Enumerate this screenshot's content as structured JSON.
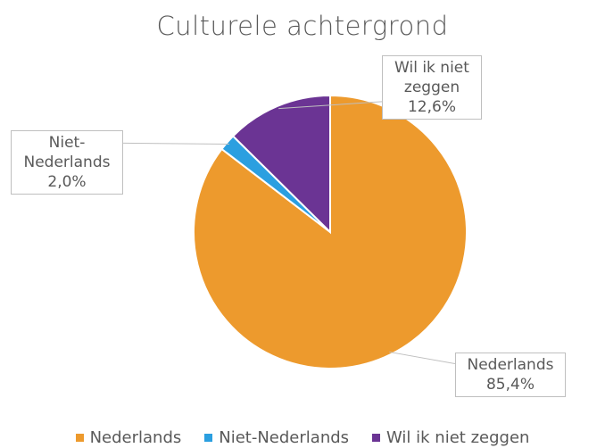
{
  "chart_data": {
    "type": "pie",
    "title": "Culturele achtergrond",
    "categories": [
      "Nederlands",
      "Niet-Nederlands",
      "Wil ik niet zeggen"
    ],
    "values": [
      85.4,
      2.0,
      12.6
    ],
    "value_labels": [
      "85,4%",
      "2,0%",
      "12,6%"
    ],
    "label_lines": {
      "Nederlands": [
        "Nederlands"
      ],
      "Niet-Nederlands": [
        "Niet-",
        "Nederlands"
      ],
      "Wil ik niet zeggen": [
        "Wil ik niet",
        "zeggen"
      ]
    },
    "colors": [
      "#ED9A2D",
      "#2B9FE0",
      "#6B3494"
    ],
    "legend_position": "bottom",
    "start_angle_deg": 0,
    "direction": "clockwise"
  }
}
